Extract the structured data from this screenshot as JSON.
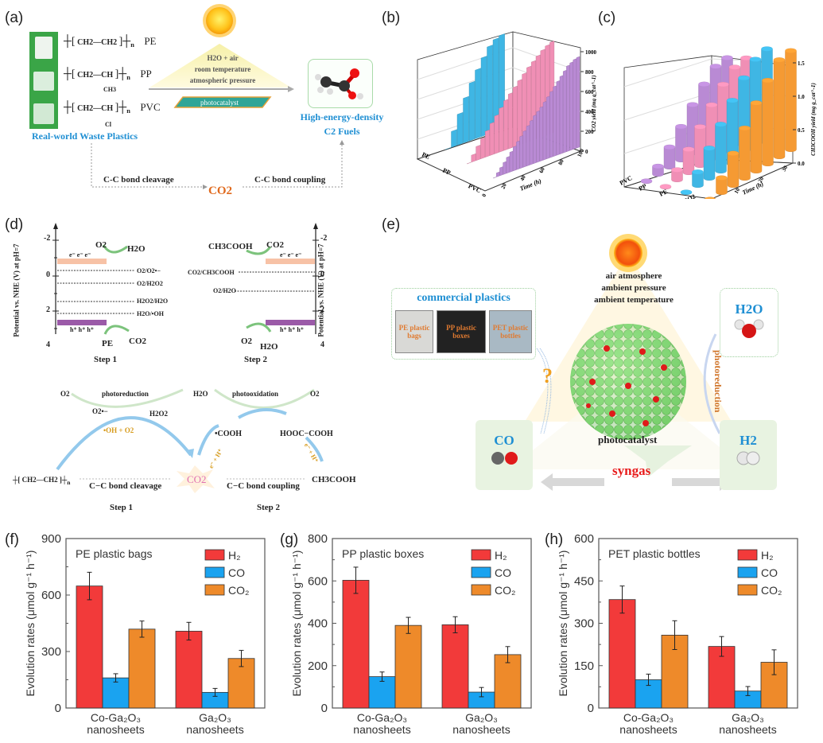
{
  "panels": {
    "a": {
      "label": "(a)",
      "plastics": [
        {
          "formula_main": "CH2—CH2",
          "name": "PE",
          "side": ""
        },
        {
          "formula_main": "CH2—CH",
          "name": "PP",
          "side": "CH3"
        },
        {
          "formula_main": "CH2—CH",
          "name": "PVC",
          "side": "Cl"
        }
      ],
      "subscript_n": "n",
      "plastics_caption": "Real-world Waste Plastics",
      "conditions": [
        "H2O + air",
        "room temperature",
        "atmospheric pressure"
      ],
      "catalyst_label": "photocatalyst",
      "product_caption_1": "High-energy-density",
      "product_caption_2": "C2 Fuels",
      "cleavage_label": "C-C bond cleavage",
      "coupling_label": "C-C bond coupling",
      "co2_label": "CO2"
    },
    "b": {
      "label": "(b)"
    },
    "c": {
      "label": "(c)"
    },
    "d": {
      "label": "(d)",
      "y_axis_label": "Potential vs. NHE (V) at pH=7",
      "y_ticks": [
        "-2",
        "0",
        "2",
        "4"
      ],
      "step1": {
        "levels": [
          "O2/O2•−",
          "O2/H2O2",
          "H2O2/H2O",
          "H2O/•OH"
        ],
        "top_reactant": "O2",
        "top_product": "H2O",
        "bottom_reactant": "PE",
        "bottom_product": "CO2",
        "electrons": "e⁻ e⁻ e⁻",
        "holes": "h⁺ h⁺ h⁺",
        "caption": "Step 1"
      },
      "step2": {
        "levels": [
          "CO2/CH3COOH",
          "O2/H2O"
        ],
        "top_reactant": "CO2",
        "top_product": "CH3COOH",
        "bottom_reactant": "H2O",
        "bottom_product": "O2",
        "electrons": "e⁻ e⁻ e⁻",
        "holes": "h⁺ h⁺ h⁺",
        "caption": "Step 2"
      },
      "scheme": {
        "o2_left": "O2",
        "photoreduction": "photoreduction",
        "h2o_mid": "H2O",
        "photooxidation": "photooxidation",
        "o2_right": "O2",
        "superoxide": "O2•−",
        "h2o2": "H2O2",
        "oh_o2": "•OH + O2",
        "cooh": "•COOH",
        "oxalic": "HOOC−COOH",
        "eh1": "e⁻ + H⁺",
        "eh2": "e⁻ + H⁺",
        "pe_unit": "CH2—CH2",
        "n": "n",
        "cleavage": "C−C bond cleavage",
        "co2": "CO2",
        "coupling": "C−C bond coupling",
        "product": "CH3COOH",
        "step1": "Step 1",
        "step2": "Step 2"
      }
    },
    "e": {
      "label": "(e)",
      "conditions": [
        "air atmosphere",
        "ambient pressure",
        "ambient temperature"
      ],
      "plastics_title": "commercial plastics",
      "photos": [
        "PE plastic bags",
        "PP plastic boxes",
        "PET plastic bottles"
      ],
      "water": "H2O",
      "photoreduction": "photoreduction",
      "question": "?",
      "catalyst": "photocatalyst",
      "co": "CO",
      "h2": "H2",
      "syngas": "syngas"
    }
  },
  "chart_data": [
    {
      "id": "b",
      "type": "bar",
      "subtype": "3d-bar",
      "title": "",
      "xlabel": "Time (h)",
      "ylabel": "CO2 yield (mg g_cat^-1)",
      "x_ticks": [
        "0",
        "20",
        "40",
        "60",
        "80",
        "100"
      ],
      "z_ticks": [
        0,
        200,
        400,
        600,
        800,
        1000
      ],
      "ylim": [
        0,
        1000
      ],
      "categories": [
        "PE",
        "PP",
        "PVC"
      ],
      "series": [
        {
          "name": "PE",
          "color": "#3fb6e4",
          "time_h": [
            0,
            6,
            12,
            18,
            24,
            30,
            36,
            42,
            48,
            54
          ],
          "values": [
            0,
            160,
            310,
            450,
            580,
            690,
            790,
            880,
            930,
            950
          ]
        },
        {
          "name": "PP",
          "color": "#f08fb5",
          "time_h": [
            0,
            4,
            8,
            12,
            16,
            20,
            24,
            28,
            32,
            36,
            40,
            44,
            48,
            52,
            56,
            60,
            64,
            68,
            72
          ],
          "values": [
            0,
            70,
            140,
            200,
            260,
            320,
            380,
            440,
            500,
            550,
            600,
            650,
            700,
            750,
            790,
            830,
            870,
            900,
            920
          ]
        },
        {
          "name": "PVC",
          "color": "#b98ad4",
          "time_h": [
            0,
            4,
            8,
            12,
            16,
            20,
            24,
            28,
            32,
            36,
            40,
            44,
            48,
            52,
            56,
            60,
            64,
            68,
            72,
            76,
            80,
            84,
            88,
            92,
            96,
            100
          ],
          "values": [
            0,
            40,
            80,
            120,
            160,
            200,
            240,
            280,
            320,
            360,
            400,
            440,
            480,
            510,
            540,
            580,
            620,
            660,
            700,
            740,
            780,
            820,
            860,
            880,
            900,
            910
          ]
        }
      ]
    },
    {
      "id": "c",
      "type": "bar",
      "subtype": "3d-cylinder",
      "title": "",
      "xlabel": "Time (h)",
      "ylabel": "CH3COOH yield (mg g_cat^-1)",
      "x_ticks": [
        "0",
        "10",
        "20",
        "30"
      ],
      "z_ticks": [
        "0.0",
        "0.5",
        "1.0",
        "1.5"
      ],
      "ylim": [
        0,
        1.5
      ],
      "categories": [
        "PVC",
        "PP",
        "PE",
        "CO2"
      ],
      "series": [
        {
          "name": "PVC",
          "color": "#b98ad4",
          "time_h": [
            0,
            5,
            10,
            15,
            20,
            25,
            30,
            35
          ],
          "values": [
            0,
            0.12,
            0.3,
            0.5,
            0.72,
            0.92,
            1.08,
            1.1
          ]
        },
        {
          "name": "PP",
          "color": "#f08fb5",
          "time_h": [
            0,
            5,
            10,
            15,
            20,
            25,
            30,
            35
          ],
          "values": [
            0,
            0.15,
            0.35,
            0.58,
            0.8,
            1.0,
            1.15,
            1.18
          ]
        },
        {
          "name": "PE",
          "color": "#3fb6e4",
          "time_h": [
            0,
            5,
            10,
            15,
            20,
            25,
            30,
            35
          ],
          "values": [
            0,
            0.2,
            0.45,
            0.7,
            0.95,
            1.18,
            1.35,
            1.4
          ]
        },
        {
          "name": "CO2",
          "color": "#f59a33",
          "time_h": [
            0,
            5,
            10,
            15,
            20,
            25,
            30,
            35
          ],
          "values": [
            0,
            0.22,
            0.48,
            0.75,
            1.02,
            1.25,
            1.45,
            1.48
          ]
        }
      ]
    },
    {
      "id": "f",
      "panel_label": "(f)",
      "type": "bar",
      "title": "PE plastic bags",
      "xlabel": "",
      "ylabel": "Evolution rates (μmol g⁻¹ h⁻¹)",
      "ylim": [
        0,
        900
      ],
      "y_ticks": [
        0,
        300,
        600,
        900
      ],
      "categories": [
        [
          "Co-Ga₂O₃",
          "nanosheets"
        ],
        [
          "Ga₂O₃",
          "nanosheets"
        ]
      ],
      "series": [
        {
          "name": "H₂",
          "color": "#f23a3a",
          "values": [
            648,
            408
          ],
          "errors": [
            73,
            47
          ]
        },
        {
          "name": "CO",
          "color": "#1aa3f0",
          "values": [
            160,
            83
          ],
          "errors": [
            22,
            21
          ]
        },
        {
          "name": "CO₂",
          "color": "#ee8a2a",
          "values": [
            419,
            263
          ],
          "errors": [
            43,
            43
          ]
        }
      ],
      "legend": "top-right"
    },
    {
      "id": "g",
      "panel_label": "(g)",
      "type": "bar",
      "title": "PP plastic boxes",
      "xlabel": "",
      "ylabel": "Evolution rates (μmol g⁻¹ h⁻¹)",
      "ylim": [
        0,
        800
      ],
      "y_ticks": [
        0,
        200,
        400,
        600,
        800
      ],
      "categories": [
        [
          "Co-Ga₂O₃",
          "nanosheets"
        ],
        [
          "Ga₂O₃",
          "nanosheets"
        ]
      ],
      "series": [
        {
          "name": "H₂",
          "color": "#f23a3a",
          "values": [
            603,
            393
          ],
          "errors": [
            62,
            38
          ]
        },
        {
          "name": "CO",
          "color": "#1aa3f0",
          "values": [
            148,
            75
          ],
          "errors": [
            22,
            22
          ]
        },
        {
          "name": "CO₂",
          "color": "#ee8a2a",
          "values": [
            390,
            252
          ],
          "errors": [
            38,
            38
          ]
        }
      ],
      "legend": "top-right"
    },
    {
      "id": "h",
      "panel_label": "(h)",
      "type": "bar",
      "title": "PET plastic bottles",
      "xlabel": "",
      "ylabel": "Evolution rates (μmol g⁻¹ h⁻¹)",
      "ylim": [
        0,
        600
      ],
      "y_ticks": [
        0,
        150,
        300,
        450,
        600
      ],
      "categories": [
        [
          "Co-Ga₂O₃",
          "nanosheets"
        ],
        [
          "Ga₂O₃",
          "nanosheets"
        ]
      ],
      "series": [
        {
          "name": "H₂",
          "color": "#f23a3a",
          "values": [
            384,
            218
          ],
          "errors": [
            48,
            35
          ]
        },
        {
          "name": "CO",
          "color": "#1aa3f0",
          "values": [
            100,
            60
          ],
          "errors": [
            20,
            16
          ]
        },
        {
          "name": "CO₂",
          "color": "#ee8a2a",
          "values": [
            258,
            162
          ],
          "errors": [
            51,
            44
          ]
        }
      ],
      "legend": "top-right"
    }
  ]
}
